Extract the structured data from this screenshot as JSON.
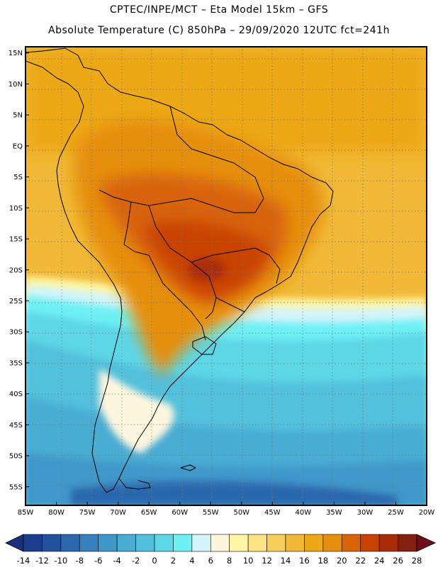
{
  "title_line1": "CPTEC/INPE/MCT –  Eta Model 15km – GFS",
  "title_line2": "Absolute Temperature (C) 850hPa – 29/09/2020 12UTC fct=241h",
  "map": {
    "region": "South America",
    "lon_range": [
      -85,
      -20
    ],
    "lat_range": [
      -58,
      16
    ],
    "lat_ticks": [
      {
        "value": 15,
        "label": "15N"
      },
      {
        "value": 10,
        "label": "10N"
      },
      {
        "value": 5,
        "label": "5N"
      },
      {
        "value": 0,
        "label": "EQ"
      },
      {
        "value": -5,
        "label": "5S"
      },
      {
        "value": -10,
        "label": "10S"
      },
      {
        "value": -15,
        "label": "15S"
      },
      {
        "value": -20,
        "label": "20S"
      },
      {
        "value": -25,
        "label": "25S"
      },
      {
        "value": -30,
        "label": "30S"
      },
      {
        "value": -35,
        "label": "35S"
      },
      {
        "value": -40,
        "label": "40S"
      },
      {
        "value": -45,
        "label": "45S"
      },
      {
        "value": -50,
        "label": "50S"
      },
      {
        "value": -55,
        "label": "55S"
      }
    ],
    "lon_ticks": [
      {
        "value": -85,
        "label": "85W"
      },
      {
        "value": -80,
        "label": "80W"
      },
      {
        "value": -75,
        "label": "75W"
      },
      {
        "value": -70,
        "label": "70W"
      },
      {
        "value": -65,
        "label": "65W"
      },
      {
        "value": -60,
        "label": "60W"
      },
      {
        "value": -55,
        "label": "55W"
      },
      {
        "value": -50,
        "label": "50W"
      },
      {
        "value": -45,
        "label": "45W"
      },
      {
        "value": -40,
        "label": "40W"
      },
      {
        "value": -35,
        "label": "35W"
      },
      {
        "value": -30,
        "label": "30W"
      },
      {
        "value": -25,
        "label": "25W"
      },
      {
        "value": -20,
        "label": "20W"
      }
    ]
  },
  "colorbar": {
    "labels": [
      "-14",
      "-12",
      "-10",
      "-8",
      "-6",
      "-4",
      "-2",
      "0",
      "2",
      "4",
      "6",
      "8",
      "10",
      "12",
      "14",
      "16",
      "18",
      "20",
      "22",
      "24",
      "26",
      "28"
    ],
    "colors": [
      "#1c3d8c",
      "#24519e",
      "#2c68ad",
      "#3680bd",
      "#3f97c9",
      "#48acd3",
      "#52c0dc",
      "#5dd6e6",
      "#6ef0f4",
      "#d2f4fa",
      "#fdf6df",
      "#fef6a4",
      "#fbe383",
      "#f7cd5c",
      "#f1b937",
      "#eda817",
      "#e68f0e",
      "#d96408",
      "#c84206",
      "#a82d07",
      "#842010"
    ],
    "under_color": "#1a2f7d",
    "over_color": "#6f0d1d"
  }
}
